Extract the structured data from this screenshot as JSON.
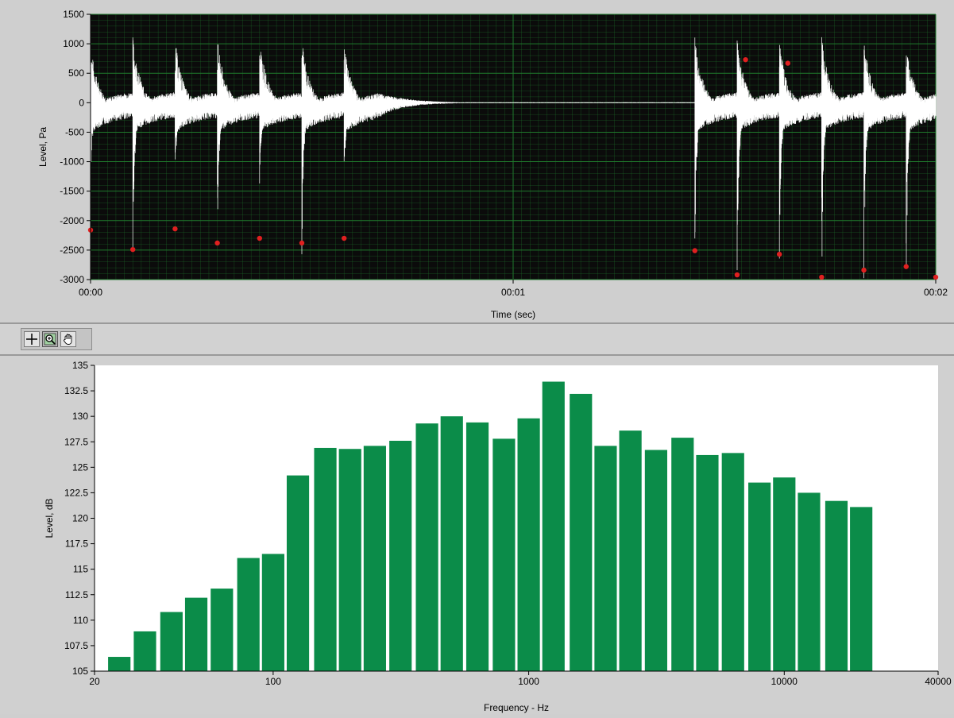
{
  "waveform_chart": {
    "ylabel": "Level, Pa",
    "xlabel": "Time (sec)",
    "y_ticks": [
      "1500",
      "1000",
      "500",
      "0",
      "-500",
      "-1000",
      "-1500",
      "-2000",
      "-2500",
      "-3000"
    ],
    "x_ticks": [
      "00:00",
      "00:01",
      "00:02"
    ],
    "colors": {
      "background": "#0b0b0b",
      "grid": "#1f7a2c",
      "trace": "#ffffff",
      "marker": "#e02020"
    }
  },
  "toolbar": {
    "cursor_tool": "crosshair-icon",
    "zoom_tool": "zoom-icon",
    "pan_tool": "hand-icon"
  },
  "chart_data": [
    {
      "type": "line",
      "xlabel": "Time (sec)",
      "ylabel": "Level, Pa",
      "xlim": [
        0,
        2
      ],
      "ylim": [
        -3000,
        1500
      ],
      "grid": true,
      "bursts": {
        "start_times": [
          0.0,
          0.1,
          0.2,
          0.3,
          0.4,
          0.5,
          0.6,
          1.43,
          1.53,
          1.63,
          1.73,
          1.83,
          1.93
        ],
        "peak_positive": [
          1300,
          1430,
          1390,
          1400,
          1420,
          1370,
          1360,
          1430,
          1370,
          1340,
          1440,
          1350,
          1320
        ],
        "peak_negative": [
          -1100,
          -2480,
          -1100,
          -2380,
          -1100,
          -2370,
          -1100,
          -2730,
          -2900,
          -2540,
          -2980,
          -2840,
          -2980
        ]
      },
      "markers": {
        "x": [
          0.0,
          0.1,
          0.2,
          0.3,
          0.4,
          0.5,
          0.6,
          1.43,
          1.53,
          1.55,
          1.63,
          1.65,
          1.73,
          1.83,
          1.93,
          2.0
        ],
        "y": [
          -2160,
          -2490,
          -2140,
          -2380,
          -2300,
          -2380,
          -2300,
          -2510,
          -2920,
          730,
          -2570,
          670,
          -2960,
          -2840,
          -2780,
          -2960
        ]
      }
    },
    {
      "type": "bar",
      "xlabel": "Frequency - Hz",
      "ylabel": "Level, dB",
      "x_scale": "log",
      "xlim": [
        20,
        40000
      ],
      "ylim": [
        105,
        135
      ],
      "x_ticks": [
        "20",
        "100",
        "1000",
        "10000",
        "40000"
      ],
      "y_ticks": [
        "135",
        "132.5",
        "130",
        "127.5",
        "125",
        "122.5",
        "120",
        "117.5",
        "115",
        "112.5",
        "110",
        "107.5",
        "105"
      ],
      "categories": [
        25,
        31.5,
        40,
        50,
        63,
        80,
        100,
        125,
        160,
        200,
        250,
        315,
        400,
        500,
        630,
        800,
        1000,
        1250,
        1600,
        2000,
        2500,
        3150,
        4000,
        5000,
        6300,
        8000,
        10000,
        12500,
        16000,
        20000
      ],
      "values": [
        106.4,
        108.9,
        110.8,
        112.2,
        113.1,
        116.1,
        116.5,
        124.2,
        126.9,
        126.8,
        127.1,
        127.6,
        129.3,
        130.0,
        129.4,
        127.8,
        129.8,
        133.4,
        132.2,
        127.1,
        128.6,
        126.7,
        127.9,
        126.2,
        126.4,
        123.5,
        124.0,
        122.5,
        121.7,
        121.1
      ],
      "color": "#0b8c49"
    }
  ]
}
